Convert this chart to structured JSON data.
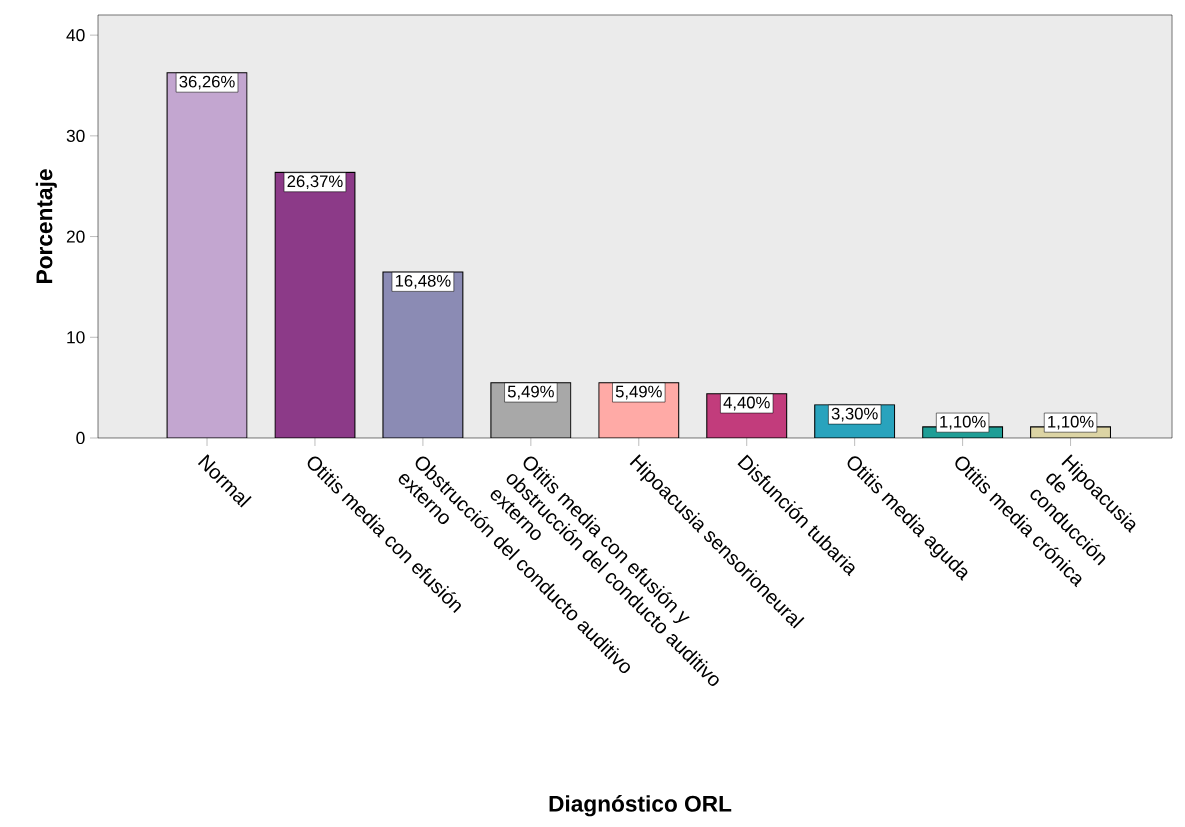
{
  "chart_data": {
    "type": "bar",
    "xlabel": "Diagnóstico ORL",
    "ylabel": "Porcentaje",
    "categories": [
      "Normal",
      "Otitis media con efusión",
      "Obstrucción del conducto auditivo externo",
      "Otitis media con efusión y obstrucción del conducto auditivo externo",
      "Hipoacusia sensorioneural",
      "Disfunción tubaria",
      "Otitis media aguda",
      "Otitis media crónica",
      "Hipoacusia de conducción"
    ],
    "values": [
      36.26,
      26.37,
      16.48,
      5.49,
      5.49,
      4.4,
      3.3,
      1.1,
      1.1
    ],
    "value_labels": [
      "36,26%",
      "26,37%",
      "16,48%",
      "5,49%",
      "5,49%",
      "4,40%",
      "3,30%",
      "1,10%",
      "1,10%"
    ],
    "colors": [
      "#c3a6d0",
      "#8c3a88",
      "#8b8bb4",
      "#a8a8a8",
      "#ffaaa6",
      "#c23c7c",
      "#29a3bd",
      "#1f9e96",
      "#dcd4a4"
    ],
    "ylim": [
      0,
      42
    ],
    "yticks": [
      0,
      10,
      20,
      30,
      40
    ]
  }
}
